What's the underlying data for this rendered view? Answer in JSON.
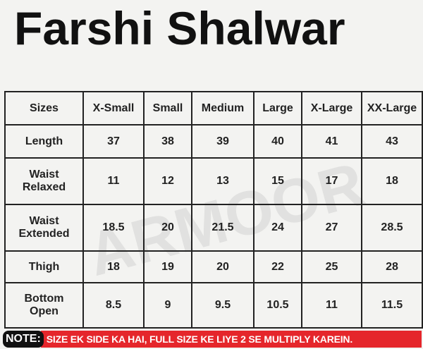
{
  "title": "Farshi Shalwar",
  "watermark": "ARMOOR",
  "table": {
    "headers": [
      "Sizes",
      "X-Small",
      "Small",
      "Medium",
      "Large",
      "X-Large",
      "XX-Large"
    ],
    "rows": [
      [
        "Length",
        "37",
        "38",
        "39",
        "40",
        "41",
        "43"
      ],
      [
        "Waist Relaxed",
        "11",
        "12",
        "13",
        "15",
        "17",
        "18"
      ],
      [
        "Waist Extended",
        "18.5",
        "20",
        "21.5",
        "24",
        "27",
        "28.5"
      ],
      [
        "Thigh",
        "18",
        "19",
        "20",
        "22",
        "25",
        "28"
      ],
      [
        "Bottom Open",
        "8.5",
        "9",
        "9.5",
        "10.5",
        "11",
        "11.5"
      ]
    ]
  },
  "note": {
    "label": "NOTE:",
    "text": "SIZE EK SIDE KA HAI, FULL SIZE KE LIYE 2 SE MULTIPLY KAREIN.",
    "color": "#e5262b"
  }
}
